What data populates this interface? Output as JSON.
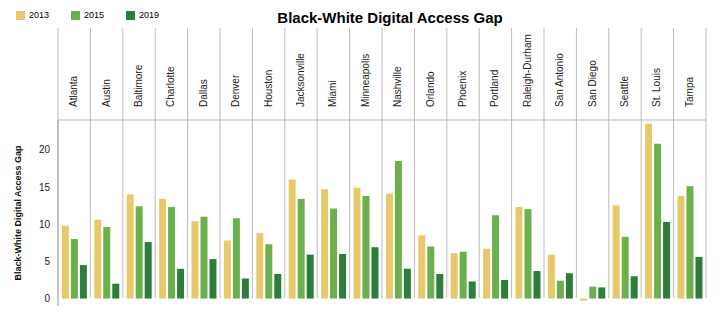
{
  "chart_data": {
    "type": "bar",
    "title": "Black-White Digital Access Gap",
    "y_label": "Black-White Digital Access Gap",
    "categories": [
      "Atlanta",
      "Austin",
      "Baltimore",
      "Charlotte",
      "Dallas",
      "Denver",
      "Houston",
      "Jacksonville",
      "Miami",
      "Minneapolis",
      "Nashville",
      "Orlando",
      "Phoenix",
      "Portland",
      "Raleigh-Durham",
      "San Antonio",
      "San Diego",
      "Seattle",
      "St. Louis",
      "Tampa"
    ],
    "series": [
      {
        "name": "2013",
        "color": "#e8c96a",
        "values": [
          9.8,
          10.6,
          14.0,
          13.4,
          10.4,
          7.8,
          8.8,
          16.0,
          14.7,
          14.9,
          14.1,
          8.5,
          6.1,
          6.7,
          12.3,
          5.9,
          -0.3,
          12.5,
          23.5,
          13.8
        ]
      },
      {
        "name": "2015",
        "color": "#6cb04e",
        "values": [
          8.0,
          9.6,
          12.4,
          12.3,
          11.0,
          10.8,
          7.3,
          13.4,
          12.1,
          13.8,
          18.5,
          7.0,
          6.3,
          11.2,
          12.0,
          2.4,
          1.6,
          8.3,
          20.8,
          15.1
        ]
      },
      {
        "name": "2019",
        "color": "#2e7d3c",
        "values": [
          4.5,
          2.0,
          7.6,
          4.0,
          5.3,
          2.7,
          3.3,
          5.9,
          6.0,
          6.9,
          4.0,
          3.3,
          2.3,
          2.5,
          3.7,
          3.4,
          1.5,
          3.0,
          10.3,
          5.6
        ]
      }
    ],
    "ylim": [
      -1,
      24
    ],
    "yticks": [
      0,
      5,
      10,
      15,
      20
    ],
    "legend": "top-left"
  }
}
